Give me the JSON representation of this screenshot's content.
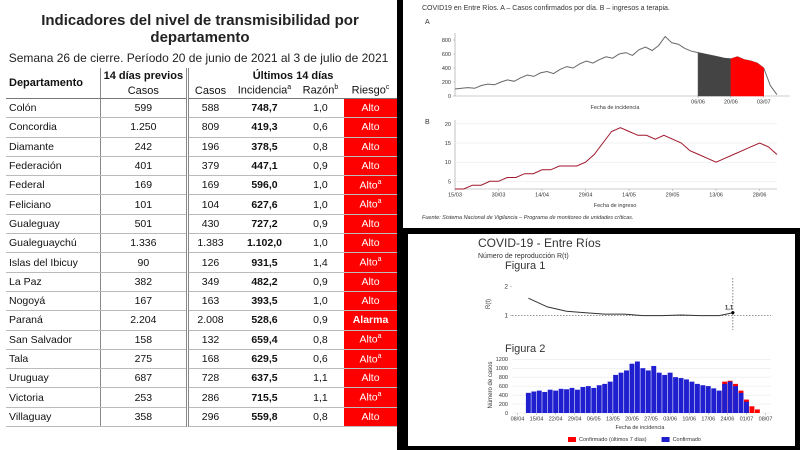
{
  "table": {
    "title": "Indicadores del nivel de transmisibilidad por departamento",
    "subtitle": "Semana 26 de cierre. Período 20 de junio de 2021 al 3 de julio de 2021",
    "group_headers": [
      "14 días previos",
      "Últimos 14 días"
    ],
    "columns": [
      {
        "text": "Departamento"
      },
      {
        "text": "Casos"
      },
      {
        "text": "Casos"
      },
      {
        "text": "Incidencia",
        "sup": "a"
      },
      {
        "text": "Razón",
        "sup": "b"
      },
      {
        "text": "Riesgo",
        "sup": "c"
      }
    ],
    "rows": [
      {
        "cells": [
          "Colón",
          "599",
          "588",
          "748,7",
          "1,0",
          "Alto"
        ]
      },
      {
        "cells": [
          "Concordia",
          "1.250",
          "809",
          "419,3",
          "0,6",
          "Alto"
        ]
      },
      {
        "cells": [
          "Diamante",
          "242",
          "196",
          "378,5",
          "0,8",
          "Alto"
        ]
      },
      {
        "cells": [
          "Federación",
          "401",
          "379",
          "447,1",
          "0,9",
          "Alto"
        ]
      },
      {
        "cells": [
          "Federal",
          "169",
          "169",
          "596,0",
          "1,0",
          "Alto"
        ],
        "sup": "a"
      },
      {
        "cells": [
          "Feliciano",
          "101",
          "104",
          "627,6",
          "1,0",
          "Alto"
        ],
        "sup": "a"
      },
      {
        "cells": [
          "Gualeguay",
          "501",
          "430",
          "727,2",
          "0,9",
          "Alto"
        ]
      },
      {
        "cells": [
          "Gualeguaychú",
          "1.336",
          "1.383",
          "1.102,0",
          "1,0",
          "Alto"
        ]
      },
      {
        "cells": [
          "Islas del Ibicuy",
          "90",
          "126",
          "931,5",
          "1,4",
          "Alto"
        ],
        "sup": "a"
      },
      {
        "cells": [
          "La Paz",
          "382",
          "349",
          "482,2",
          "0,9",
          "Alto"
        ]
      },
      {
        "cells": [
          "Nogoyá",
          "167",
          "163",
          "393,5",
          "1,0",
          "Alto"
        ]
      },
      {
        "cells": [
          "Paraná",
          "2.204",
          "2.008",
          "528,6",
          "0,9",
          "Alarma"
        ]
      },
      {
        "cells": [
          "San Salvador",
          "158",
          "132",
          "659,4",
          "0,8",
          "Alto"
        ],
        "sup": "a"
      },
      {
        "cells": [
          "Tala",
          "275",
          "168",
          "629,5",
          "0,6",
          "Alto"
        ],
        "sup": "a"
      },
      {
        "cells": [
          "Uruguay",
          "687",
          "728",
          "637,5",
          "1,1",
          "Alto"
        ]
      },
      {
        "cells": [
          "Victoria",
          "253",
          "286",
          "715,5",
          "1,1",
          "Alto"
        ],
        "sup": "a"
      },
      {
        "cells": [
          "Villaguay",
          "358",
          "296",
          "559,8",
          "0,8",
          "Alto"
        ]
      }
    ]
  },
  "figure_top": {
    "caption": "COVID19 en Entre Ríos. A – Casos confirmados por día. B – ingresos a terapia.",
    "source": "Fuente: Sistema Nacional de Vigilancia – Programa de monitoreo de unidades críticas."
  },
  "figure_bottom": {
    "title": "COVID-19 - Entre Ríos",
    "subtitle": "Número de reproducción R(t)"
  },
  "chart_data": [
    {
      "type": "line",
      "label": "A",
      "xlabel": "Fecha de incidencia",
      "xlim": [
        0,
        51
      ],
      "ylim": [
        0,
        900
      ],
      "yticks": [
        0,
        200,
        400,
        600,
        800
      ],
      "xticks": [
        {
          "value": 37,
          "label": "06/06"
        },
        {
          "value": 42,
          "label": "20/06"
        },
        {
          "value": 47,
          "label": "03/07"
        }
      ],
      "series": [
        {
          "color": "#666",
          "values": [
            100,
            110,
            120,
            110,
            150,
            170,
            160,
            200,
            230,
            210,
            260,
            300,
            280,
            330,
            350,
            320,
            380,
            420,
            400,
            460,
            500,
            470,
            520,
            560,
            540,
            600,
            620,
            580,
            660,
            700,
            650,
            720,
            850,
            760,
            740,
            680,
            640,
            620,
            600,
            580,
            560,
            540,
            530,
            560,
            520,
            500,
            470,
            400,
            150,
            20
          ]
        },
        {
          "color": "#444",
          "fill": true,
          "values": [
            null,
            null,
            null,
            null,
            null,
            null,
            null,
            null,
            null,
            null,
            null,
            null,
            null,
            null,
            null,
            null,
            null,
            null,
            null,
            null,
            null,
            null,
            null,
            null,
            null,
            null,
            null,
            null,
            null,
            null,
            null,
            null,
            null,
            null,
            null,
            null,
            null,
            620,
            600,
            580,
            560,
            540,
            530,
            null,
            null,
            null,
            null,
            null,
            null,
            null
          ]
        },
        {
          "color": "#f00",
          "fill": true,
          "values": [
            null,
            null,
            null,
            null,
            null,
            null,
            null,
            null,
            null,
            null,
            null,
            null,
            null,
            null,
            null,
            null,
            null,
            null,
            null,
            null,
            null,
            null,
            null,
            null,
            null,
            null,
            null,
            null,
            null,
            null,
            null,
            null,
            null,
            null,
            null,
            null,
            null,
            null,
            null,
            null,
            null,
            null,
            530,
            560,
            520,
            500,
            470,
            400,
            null,
            null
          ]
        }
      ]
    },
    {
      "type": "line",
      "label": "B",
      "xlabel": "Fecha de ingreso",
      "xlim": [
        0,
        37
      ],
      "ylim": [
        3,
        21
      ],
      "yticks": [
        5,
        10,
        15,
        20
      ],
      "grid": true,
      "xticks": [
        {
          "value": 0,
          "label": "15/03"
        },
        {
          "value": 5,
          "label": "30/03"
        },
        {
          "value": 10,
          "label": "14/04"
        },
        {
          "value": 15,
          "label": "29/04"
        },
        {
          "value": 20,
          "label": "14/05"
        },
        {
          "value": 25,
          "label": "29/05"
        },
        {
          "value": 30,
          "label": "13/06"
        },
        {
          "value": 35,
          "label": "28/06"
        }
      ],
      "series": [
        {
          "color": "#a0162b",
          "values": [
            3,
            3,
            4,
            4,
            5,
            5,
            6,
            6,
            7,
            7,
            8,
            8,
            9,
            9,
            9,
            10,
            12,
            15,
            18,
            19,
            18,
            17,
            17,
            16,
            17,
            16,
            15,
            13,
            12,
            11,
            10,
            11,
            12,
            13,
            14,
            15,
            14,
            12
          ]
        }
      ]
    },
    {
      "type": "line",
      "title": "Figura 1",
      "ylabel": "R(t)",
      "xlim": [
        -2,
        93
      ],
      "ylim": [
        0.5,
        2.3
      ],
      "yticks": [
        1,
        2
      ],
      "hline": 1,
      "vline": 79,
      "annotation": "1,1",
      "x": [
        4,
        11,
        18,
        25,
        32,
        39,
        46,
        53,
        60,
        67,
        74,
        79
      ],
      "series": [
        {
          "color": "#333",
          "values": [
            1.6,
            1.3,
            1.15,
            1.1,
            1.05,
            1.05,
            1.0,
            1.0,
            1.02,
            1.0,
            1.0,
            1.1
          ]
        }
      ]
    },
    {
      "type": "bar",
      "title": "Figura 2",
      "ylabel": "Número de casos",
      "xlabel": "Fecha de incidencia",
      "xlim": [
        -2,
        93
      ],
      "ylim": [
        0,
        1250
      ],
      "yticks": [
        0,
        200,
        400,
        600,
        800,
        1000,
        1200
      ],
      "grid": true,
      "legend": "bottom",
      "xticks": [
        {
          "value": 0,
          "label": "08/04"
        },
        {
          "value": 7,
          "label": "15/04"
        },
        {
          "value": 14,
          "label": "22/04"
        },
        {
          "value": 21,
          "label": "29/04"
        },
        {
          "value": 28,
          "label": "06/05"
        },
        {
          "value": 35,
          "label": "13/05"
        },
        {
          "value": 42,
          "label": "20/05"
        },
        {
          "value": 49,
          "label": "27/05"
        },
        {
          "value": 56,
          "label": "03/06"
        },
        {
          "value": 63,
          "label": "10/06"
        },
        {
          "value": 70,
          "label": "17/06"
        },
        {
          "value": 77,
          "label": "24/06"
        },
        {
          "value": 84,
          "label": "01/07"
        },
        {
          "value": 91,
          "label": "08/07"
        }
      ],
      "x": [
        4,
        6,
        8,
        10,
        12,
        14,
        16,
        18,
        20,
        22,
        24,
        26,
        28,
        30,
        32,
        34,
        36,
        38,
        40,
        42,
        44,
        46,
        48,
        50,
        52,
        54,
        56,
        58,
        60,
        62,
        64,
        66,
        68,
        70,
        72,
        74,
        76,
        78,
        80,
        82,
        84,
        86,
        88
      ],
      "series": [
        {
          "name": "Confirmado (últimos 7 días)",
          "color": "#f00",
          "values": [
            null,
            null,
            null,
            null,
            null,
            null,
            null,
            null,
            null,
            null,
            null,
            null,
            null,
            null,
            null,
            null,
            null,
            null,
            null,
            null,
            null,
            null,
            null,
            null,
            null,
            null,
            null,
            null,
            null,
            null,
            null,
            null,
            null,
            null,
            null,
            null,
            700,
            720,
            650,
            500,
            300,
            150,
            80
          ]
        },
        {
          "name": "Confirmado",
          "color": "#1f1fd0",
          "values": [
            450,
            480,
            500,
            470,
            520,
            500,
            540,
            530,
            560,
            520,
            580,
            600,
            560,
            620,
            650,
            700,
            850,
            900,
            950,
            1100,
            1150,
            1000,
            950,
            1050,
            900,
            850,
            900,
            800,
            780,
            750,
            700,
            650,
            620,
            600,
            550,
            500,
            650,
            700,
            600,
            450,
            250,
            null,
            null
          ]
        }
      ]
    }
  ]
}
